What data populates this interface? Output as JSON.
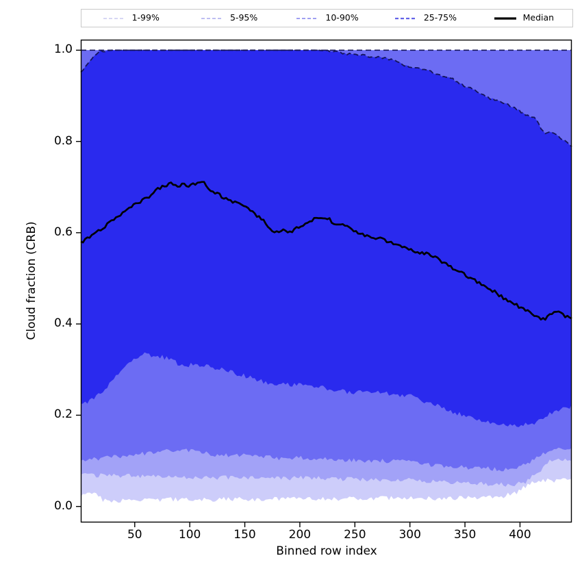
{
  "figure": {
    "background": "#ffffff"
  },
  "chart_data": {
    "type": "area",
    "subtype": "percentile-bands",
    "title": "",
    "xlabel": "Binned row index",
    "ylabel": "Cloud fraction (CRB)",
    "xlim": [
      1,
      447
    ],
    "ylim": [
      -0.035,
      1.023
    ],
    "grid": false,
    "x_ticks": [
      {
        "v": 50,
        "label": "50"
      },
      {
        "v": 100,
        "label": "100"
      },
      {
        "v": 150,
        "label": "150"
      },
      {
        "v": 200,
        "label": "200"
      },
      {
        "v": 250,
        "label": "250"
      },
      {
        "v": 300,
        "label": "300"
      },
      {
        "v": 350,
        "label": "350"
      },
      {
        "v": 400,
        "label": "400"
      }
    ],
    "y_ticks": [
      {
        "v": 0.0,
        "label": "0.0"
      },
      {
        "v": 0.2,
        "label": "0.2"
      },
      {
        "v": 0.4,
        "label": "0.4"
      },
      {
        "v": 0.6,
        "label": "0.6"
      },
      {
        "v": 0.8,
        "label": "0.8"
      },
      {
        "v": 1.0,
        "label": "1.0"
      }
    ],
    "legend": {
      "position": "top",
      "entries": [
        {
          "label": "1-99%",
          "color": "#c8c8f0",
          "dash": "5 3",
          "width": 1.5
        },
        {
          "label": "5-95%",
          "color": "#a8a8ee",
          "dash": "5 3",
          "width": 1.5
        },
        {
          "label": "10-90%",
          "color": "#9292f0",
          "dash": "5 3",
          "width": 1.7
        },
        {
          "label": "25-75%",
          "color": "#6363e8",
          "dash": "5 3",
          "width": 2.2
        },
        {
          "label": "Median",
          "color": "#000000",
          "dash": "",
          "width": 3.2
        }
      ]
    },
    "boundary_line_color": "#14145a",
    "bands_x": [
      1,
      10,
      19,
      20,
      28,
      36,
      44,
      52,
      58,
      66,
      74,
      82,
      90,
      100,
      110,
      120,
      132,
      144,
      156,
      168,
      180,
      192,
      204,
      216,
      228,
      240,
      252,
      264,
      276,
      288,
      300,
      312,
      324,
      336,
      348,
      360,
      372,
      384,
      396,
      406,
      414,
      422,
      430,
      438,
      447
    ],
    "bands": [
      {
        "label": "1-99%",
        "fill": "#cdcdfa",
        "high": 1.0,
        "low": [
          0.026,
          0.026,
          0.026,
          0.014,
          0.013,
          0.013,
          0.014,
          0.014,
          0.014,
          0.015,
          0.015,
          0.015,
          0.016,
          0.016,
          0.016,
          0.015,
          0.016,
          0.017,
          0.016,
          0.016,
          0.017,
          0.017,
          0.018,
          0.017,
          0.017,
          0.017,
          0.018,
          0.018,
          0.018,
          0.018,
          0.019,
          0.018,
          0.018,
          0.018,
          0.019,
          0.018,
          0.02,
          0.022,
          0.03,
          0.045,
          0.055,
          0.057,
          0.057,
          0.058,
          0.06
        ]
      },
      {
        "label": "5-95%",
        "fill": "#a2a2f7",
        "high": 1.0,
        "low": [
          0.07,
          0.069,
          0.068,
          0.068,
          0.068,
          0.067,
          0.067,
          0.067,
          0.067,
          0.067,
          0.067,
          0.066,
          0.065,
          0.065,
          0.064,
          0.063,
          0.063,
          0.064,
          0.063,
          0.062,
          0.062,
          0.062,
          0.063,
          0.062,
          0.061,
          0.06,
          0.06,
          0.059,
          0.058,
          0.057,
          0.058,
          0.056,
          0.054,
          0.053,
          0.051,
          0.05,
          0.049,
          0.048,
          0.048,
          0.055,
          0.07,
          0.088,
          0.105,
          0.103,
          0.102
        ]
      },
      {
        "label": "10-90%",
        "fill": "#6c6cf3",
        "high": 1.0,
        "low": [
          0.102,
          0.104,
          0.105,
          0.105,
          0.108,
          0.11,
          0.112,
          0.114,
          0.116,
          0.118,
          0.12,
          0.122,
          0.123,
          0.122,
          0.12,
          0.113,
          0.112,
          0.113,
          0.11,
          0.108,
          0.106,
          0.105,
          0.107,
          0.105,
          0.103,
          0.102,
          0.102,
          0.1,
          0.1,
          0.099,
          0.098,
          0.094,
          0.09,
          0.088,
          0.086,
          0.085,
          0.083,
          0.082,
          0.084,
          0.095,
          0.105,
          0.118,
          0.127,
          0.126,
          0.125
        ]
      },
      {
        "label": "25-75%",
        "fill": "#2a2aee",
        "high": [
          0.952,
          0.978,
          1.0,
          0.995,
          1.0,
          1.0,
          1.0,
          1.0,
          1.0,
          1.0,
          1.0,
          1.0,
          1.0,
          1.0,
          1.0,
          1.0,
          1.0,
          1.0,
          1.0,
          1.0,
          1.0,
          1.0,
          1.0,
          1.0,
          0.998,
          0.993,
          0.99,
          0.986,
          0.983,
          0.975,
          0.962,
          0.958,
          0.948,
          0.94,
          0.924,
          0.912,
          0.895,
          0.885,
          0.873,
          0.857,
          0.85,
          0.818,
          0.82,
          0.805,
          0.79
        ],
        "low": [
          0.225,
          0.232,
          0.248,
          0.25,
          0.272,
          0.292,
          0.31,
          0.325,
          0.335,
          0.33,
          0.328,
          0.322,
          0.312,
          0.31,
          0.31,
          0.305,
          0.3,
          0.29,
          0.282,
          0.272,
          0.268,
          0.266,
          0.27,
          0.262,
          0.258,
          0.252,
          0.25,
          0.252,
          0.248,
          0.245,
          0.243,
          0.232,
          0.222,
          0.21,
          0.2,
          0.192,
          0.185,
          0.18,
          0.176,
          0.18,
          0.184,
          0.198,
          0.208,
          0.215,
          0.22
        ]
      }
    ],
    "median": {
      "label": "Median",
      "color": "#000000",
      "x": [
        1,
        6,
        11,
        16,
        21,
        26,
        31,
        36,
        41,
        46,
        51,
        56,
        61,
        66,
        70,
        74,
        78,
        82,
        86,
        90,
        95,
        100,
        104,
        108,
        112,
        116,
        121,
        126,
        131,
        136,
        141,
        146,
        151,
        156,
        161,
        166,
        171,
        176,
        181,
        185,
        189,
        193,
        198,
        203,
        208,
        213,
        218,
        222,
        226,
        230,
        235,
        240,
        245,
        251,
        257,
        263,
        269,
        275,
        281,
        287,
        293,
        299,
        305,
        311,
        317,
        323,
        329,
        335,
        341,
        347,
        353,
        359,
        365,
        371,
        377,
        383,
        389,
        395,
        401,
        407,
        413,
        418,
        423,
        427,
        431,
        435,
        439,
        443,
        447
      ],
      "y": [
        0.578,
        0.585,
        0.592,
        0.601,
        0.609,
        0.621,
        0.628,
        0.638,
        0.65,
        0.656,
        0.663,
        0.67,
        0.676,
        0.682,
        0.694,
        0.699,
        0.703,
        0.709,
        0.703,
        0.7,
        0.707,
        0.703,
        0.707,
        0.711,
        0.713,
        0.7,
        0.69,
        0.684,
        0.676,
        0.671,
        0.667,
        0.661,
        0.655,
        0.648,
        0.636,
        0.628,
        0.616,
        0.604,
        0.598,
        0.606,
        0.6,
        0.604,
        0.611,
        0.618,
        0.624,
        0.629,
        0.636,
        0.63,
        0.634,
        0.622,
        0.62,
        0.617,
        0.613,
        0.601,
        0.596,
        0.589,
        0.588,
        0.586,
        0.58,
        0.575,
        0.57,
        0.564,
        0.559,
        0.556,
        0.552,
        0.548,
        0.537,
        0.528,
        0.52,
        0.512,
        0.503,
        0.495,
        0.487,
        0.478,
        0.47,
        0.46,
        0.452,
        0.444,
        0.436,
        0.428,
        0.419,
        0.413,
        0.411,
        0.418,
        0.429,
        0.426,
        0.42,
        0.416,
        0.415
      ]
    }
  }
}
